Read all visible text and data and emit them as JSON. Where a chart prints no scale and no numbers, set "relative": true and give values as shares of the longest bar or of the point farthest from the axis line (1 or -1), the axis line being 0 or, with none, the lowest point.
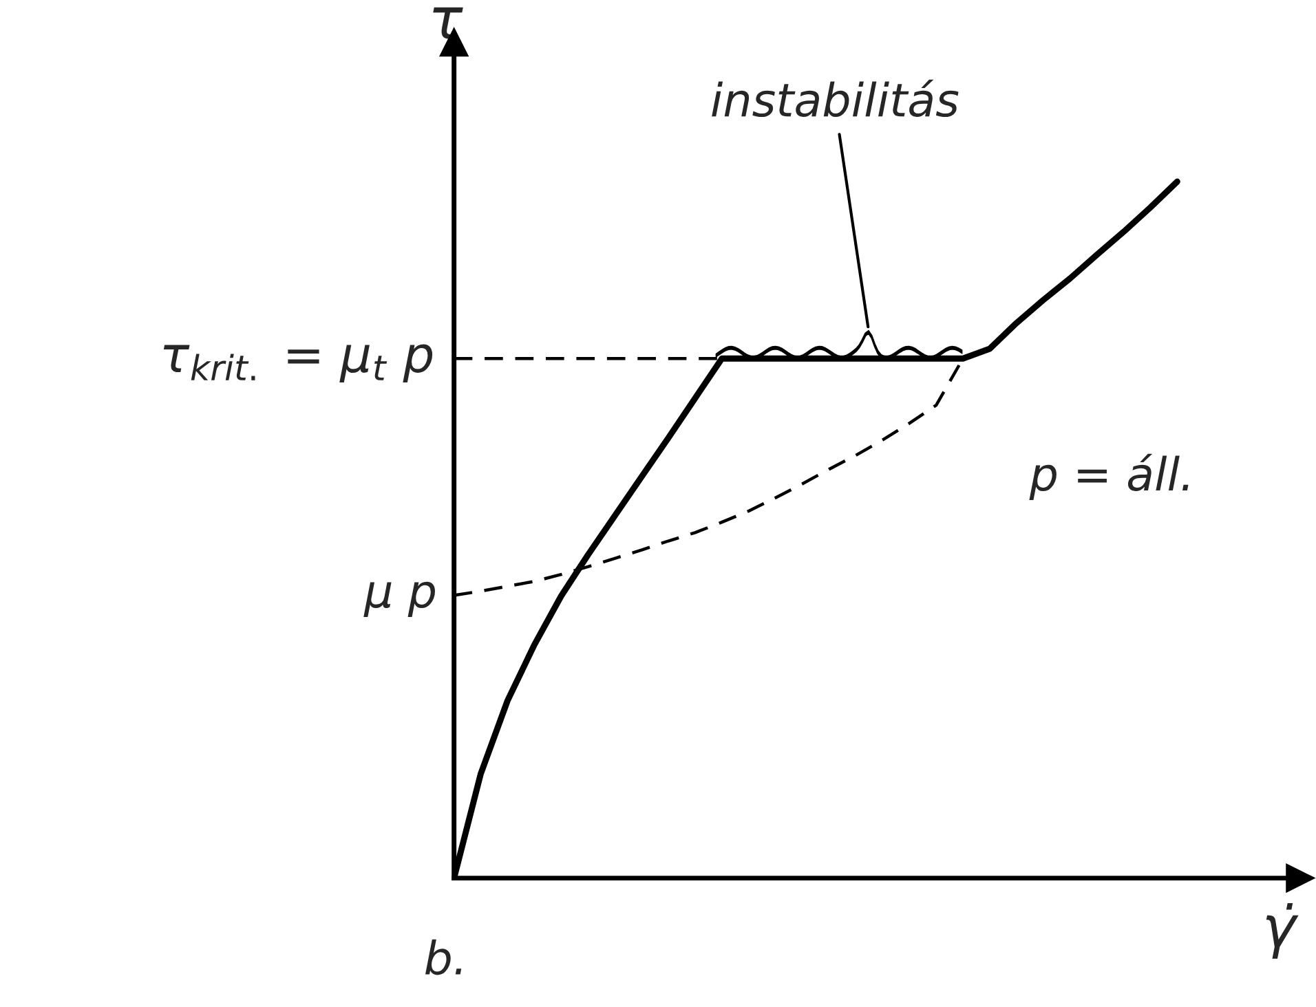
{
  "chart_data": {
    "type": "line",
    "relative": true,
    "xlabel": "γ̇",
    "ylabel": "τ",
    "categories": [
      null,
      null,
      null,
      null,
      null,
      null,
      null,
      null,
      null,
      null,
      null,
      null,
      null,
      null,
      null,
      null,
      null,
      null,
      null,
      null,
      null,
      null,
      null,
      null,
      null,
      null,
      null,
      null
    ],
    "series": [
      {
        "color": "#000000",
        "line_style": "solid",
        "values": [
          0,
          0.15,
          0.255,
          0.335,
          0.405,
          0.464,
          0.52,
          0.576,
          0.632,
          0.689,
          0.746,
          0.746,
          0.746,
          0.746,
          0.746,
          0.746,
          0.746,
          0.746,
          0.746,
          0.746,
          0.76,
          0.797,
          0.83,
          0.861,
          0.895,
          0.928,
          0.963,
          1
        ]
      },
      {
        "color": "#000000",
        "line_style": "dashed",
        "values": [
          0.406,
          0.412,
          0.419,
          0.426,
          0.436,
          0.447,
          0.459,
          0.471,
          0.484,
          0.496,
          0.511,
          0.527,
          0.546,
          0.566,
          0.587,
          0.607,
          0.629,
          0.653,
          0.679,
          0.746,
          null,
          null,
          null,
          null,
          null,
          null,
          null,
          null
        ]
      }
    ],
    "ref_lines": [
      {
        "axis": "y",
        "value": 0.746,
        "label": "τ$_{krit.}$ = μ$_{t}$ p",
        "color": "#000000",
        "line_style": "dashed"
      }
    ],
    "annotations": [
      "μ p",
      "instabilitás",
      "p = áll.",
      "b."
    ]
  }
}
